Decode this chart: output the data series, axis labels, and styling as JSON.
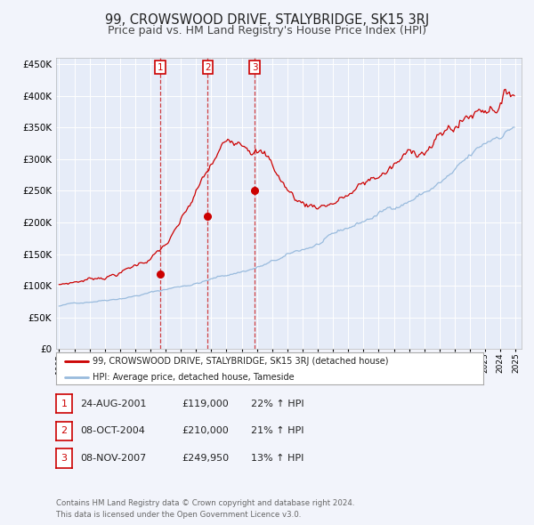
{
  "title": "99, CROWSWOOD DRIVE, STALYBRIDGE, SK15 3RJ",
  "subtitle": "Price paid vs. HM Land Registry's House Price Index (HPI)",
  "title_fontsize": 10.5,
  "subtitle_fontsize": 9,
  "background_color": "#f2f4fb",
  "plot_bg_color": "#e6ecf8",
  "red_line_color": "#cc0000",
  "blue_line_color": "#99bbdd",
  "grid_color": "#ffffff",
  "ylim": [
    0,
    460000
  ],
  "yticks": [
    0,
    50000,
    100000,
    150000,
    200000,
    250000,
    300000,
    350000,
    400000,
    450000
  ],
  "year_start": 1995,
  "year_end": 2025,
  "purchases": [
    {
      "date_num": 2001.65,
      "price": 119000,
      "label": "1"
    },
    {
      "date_num": 2004.77,
      "price": 210000,
      "label": "2"
    },
    {
      "date_num": 2007.85,
      "price": 249950,
      "label": "3"
    }
  ],
  "vlines": [
    {
      "x": 2001.65,
      "label": "1"
    },
    {
      "x": 2004.77,
      "label": "2"
    },
    {
      "x": 2007.85,
      "label": "3"
    }
  ],
  "legend_entry1": "99, CROWSWOOD DRIVE, STALYBRIDGE, SK15 3RJ (detached house)",
  "legend_entry2": "HPI: Average price, detached house, Tameside",
  "table_rows": [
    {
      "num": "1",
      "date": "24-AUG-2001",
      "price": "£119,000",
      "hpi": "22% ↑ HPI"
    },
    {
      "num": "2",
      "date": "08-OCT-2004",
      "price": "£210,000",
      "hpi": "21% ↑ HPI"
    },
    {
      "num": "3",
      "date": "08-NOV-2007",
      "price": "£249,950",
      "hpi": "13% ↑ HPI"
    }
  ],
  "footer": "Contains HM Land Registry data © Crown copyright and database right 2024.\nThis data is licensed under the Open Government Licence v3.0."
}
